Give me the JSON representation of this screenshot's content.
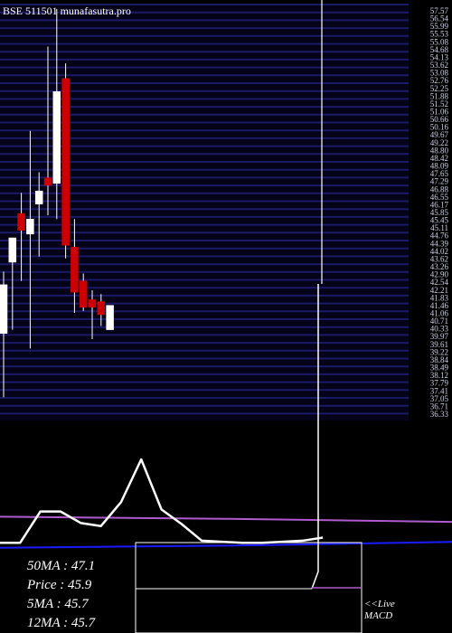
{
  "header": {
    "title": "BSE 511501 munafasutra.pro"
  },
  "colors": {
    "background": "#000000",
    "grid": "#1c1a66",
    "grid_border": "#3a3aa0",
    "candle_up": "#ffffff",
    "candle_down": "#cc0000",
    "wick": "#ffffff",
    "line_white": "#ffffff",
    "line_violet": "#b05ad0",
    "line_blue": "#1a1aff",
    "axis_text": "#cfcfe8",
    "footer_text": "#ffffff"
  },
  "price_axis": {
    "tick_labels": [
      "57.57",
      "56.54",
      "55.99",
      "55.53",
      "55.08",
      "54.68",
      "54.13",
      "53.62",
      "53.08",
      "52.76",
      "52.25",
      "51.88",
      "51.52",
      "51.06",
      "50.66",
      "50.16",
      "49.67",
      "49.22",
      "48.80",
      "48.42",
      "48.09",
      "47.65",
      "47.29",
      "46.88",
      "46.55",
      "46.17",
      "45.85",
      "45.45",
      "45.11",
      "44.76",
      "44.39",
      "44.02",
      "43.62",
      "43.26",
      "42.90",
      "42.54",
      "42.21",
      "41.83",
      "41.46",
      "41.06",
      "40.71",
      "40.33",
      "39.97",
      "39.61",
      "39.22",
      "38.84",
      "38.49",
      "38.12",
      "37.79",
      "37.41",
      "37.05",
      "36.71",
      "36.33"
    ]
  },
  "chart_data": [
    {
      "type": "candlestick",
      "title": "BSE 511501 munafasutra.pro",
      "ylim": [
        36.3,
        58.0
      ],
      "candles": [
        {
          "open": 40.7,
          "high": 44.0,
          "low": 37.3,
          "close": 43.3,
          "color": "white"
        },
        {
          "open": 44.5,
          "high": 45.8,
          "low": 40.9,
          "close": 45.8,
          "color": "white"
        },
        {
          "open": 47.1,
          "high": 48.2,
          "low": 43.5,
          "close": 46.2,
          "color": "red"
        },
        {
          "open": 46.0,
          "high": 51.5,
          "low": 39.9,
          "close": 46.8,
          "color": "white"
        },
        {
          "open": 48.3,
          "high": 49.3,
          "low": 44.8,
          "close": 47.6,
          "color": "white"
        },
        {
          "open": 48.6,
          "high": 56.0,
          "low": 47.0,
          "close": 49.0,
          "color": "red"
        },
        {
          "open": 48.7,
          "high": 58.0,
          "low": 46.8,
          "close": 53.6,
          "color": "white"
        },
        {
          "open": 54.3,
          "high": 55.1,
          "low": 44.7,
          "close": 45.4,
          "color": "red"
        },
        {
          "open": 45.3,
          "high": 46.8,
          "low": 41.8,
          "close": 42.9,
          "color": "red"
        },
        {
          "open": 43.5,
          "high": 43.9,
          "low": 41.9,
          "close": 42.1,
          "color": "red"
        },
        {
          "open": 42.1,
          "high": 43.0,
          "low": 40.4,
          "close": 42.5,
          "color": "red"
        },
        {
          "open": 42.4,
          "high": 42.8,
          "low": 41.1,
          "close": 41.7,
          "color": "red"
        },
        {
          "open": 40.9,
          "high": 42.2,
          "low": 40.9,
          "close": 42.2,
          "color": "white"
        }
      ]
    },
    {
      "type": "line",
      "series": [
        {
          "name": "MACD",
          "color": "white",
          "values": [
            0.05,
            0.05,
            0.35,
            0.35,
            0.24,
            0.21,
            0.44,
            0.85,
            0.37,
            0.23,
            0.07,
            0.06,
            0.05,
            0.05,
            0.06,
            0.07,
            0.1
          ]
        },
        {
          "color": "violet",
          "values": [
            0.3,
            0.28,
            0.25
          ]
        },
        {
          "color": "blue",
          "values": [
            0.02,
            0.04,
            0.05
          ]
        }
      ]
    }
  ],
  "footer": {
    "ma50_label": "50MA : 47.1",
    "price_label": "Price   : 45.9",
    "ma5_label": "5MA : 45.7",
    "ma12_label": "12MA : 45.7",
    "live_label": "<<Live",
    "macd_label": "MACD"
  }
}
